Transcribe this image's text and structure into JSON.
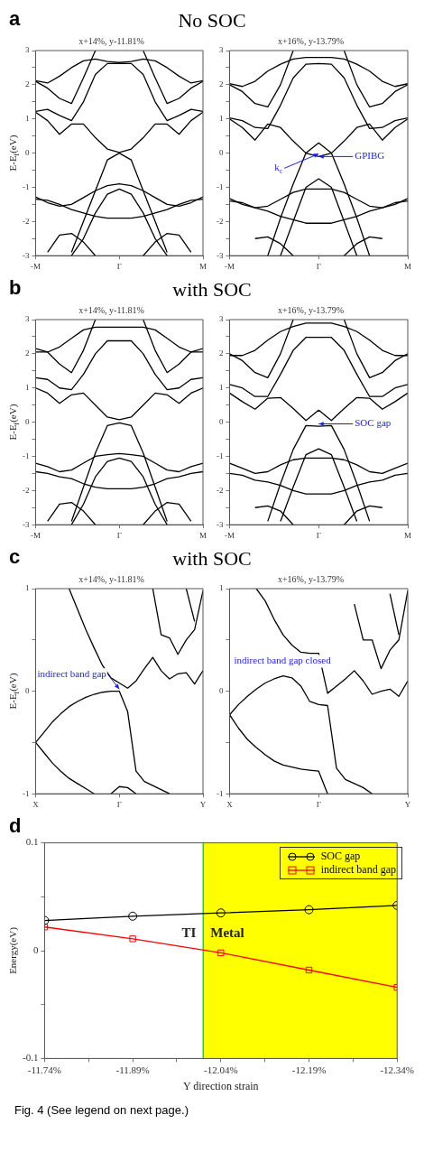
{
  "chart_data": [
    {
      "type": "line",
      "title": "x+14%, y-11.81%",
      "subtitle": "No SOC",
      "ylabel": "E-E$_{f}$(eV)",
      "annotations": [
        "a"
      ],
      "categories": [
        "-M",
        null,
        null,
        null,
        null,
        null,
        null,
        "Γ",
        null,
        null,
        null,
        null,
        null,
        null,
        "M"
      ],
      "ylim": [
        -3,
        3
      ],
      "yticks": [
        -3,
        {
          "value": -2.5,
          "label": null
        },
        -2,
        {
          "value": -1.5,
          "label": null
        },
        -1,
        {
          "value": -0.5,
          "label": null
        },
        0,
        {
          "value": 0.5,
          "label": null
        },
        1,
        {
          "value": 1.5,
          "label": null
        },
        2,
        {
          "value": 2.5,
          "label": null
        },
        3
      ],
      "grid": false,
      "legend": false,
      "marker": "none",
      "series": [
        {
          "color": "#000000",
          "values": [
            1.2,
            0.95,
            0.55,
            0.85,
            0.85,
            0.45,
            0.12,
            0.02,
            0.12,
            0.45,
            0.85,
            0.85,
            0.55,
            0.95,
            1.2
          ]
        },
        {
          "color": "#000000",
          "values": [
            1.22,
            1.28,
            1.1,
            0.95,
            1.5,
            2.3,
            2.62,
            2.62,
            2.62,
            2.3,
            1.5,
            0.95,
            1.1,
            1.28,
            1.22
          ]
        },
        {
          "color": "#000000",
          "values": [
            2.1,
            1.9,
            1.6,
            1.45,
            2.2,
            3.0,
            null,
            null,
            null,
            3.0,
            2.2,
            1.45,
            1.6,
            1.9,
            2.1
          ]
        },
        {
          "color": "#000000",
          "values": [
            2.12,
            2.05,
            2.25,
            2.5,
            2.7,
            2.75,
            2.68,
            2.65,
            2.68,
            2.75,
            2.7,
            2.5,
            2.25,
            2.05,
            2.12
          ]
        },
        {
          "color": "#000000",
          "values": [
            null,
            null,
            null,
            -2.9,
            -2.0,
            -1.1,
            -0.2,
            0,
            -0.2,
            -1.1,
            -2.0,
            -2.9,
            null,
            null,
            null
          ]
        },
        {
          "color": "#000000",
          "values": [
            null,
            null,
            null,
            -3.0,
            -2.5,
            -1.75,
            -1.2,
            -1.05,
            -1.2,
            -1.75,
            -2.5,
            -3.0,
            null,
            null,
            null
          ]
        },
        {
          "color": "#000000",
          "values": [
            -1.28,
            -1.45,
            -1.55,
            -1.5,
            -1.3,
            -1.1,
            -0.95,
            -0.9,
            -0.95,
            -1.1,
            -1.3,
            -1.5,
            -1.55,
            -1.45,
            -1.28
          ]
        },
        {
          "color": "#000000",
          "values": [
            -1.35,
            -1.38,
            -1.5,
            -1.65,
            -1.75,
            -1.85,
            -1.9,
            -1.9,
            -1.9,
            -1.85,
            -1.75,
            -1.65,
            -1.5,
            -1.38,
            -1.35
          ]
        },
        {
          "color": "#000000",
          "values": [
            null,
            -2.9,
            -2.4,
            -2.35,
            -2.6,
            -3.0,
            null,
            null,
            null,
            -3.0,
            -2.6,
            -2.35,
            -2.4,
            -2.9,
            null
          ]
        }
      ]
    },
    {
      "type": "line",
      "title": "x+16%, y-13.79%",
      "annotations": [
        {
          "text": "GPIBG",
          "x": "Γ",
          "y": -0.1
        },
        {
          "text": "k$_{c}$",
          "x": "Γ",
          "y": -0.02
        }
      ],
      "categories": [
        "-M",
        null,
        null,
        null,
        null,
        null,
        null,
        "Γ",
        null,
        null,
        null,
        null,
        null,
        null,
        "M"
      ],
      "ylim": [
        -3,
        3
      ],
      "yticks": [
        -3,
        {
          "value": -2.5,
          "label": null
        },
        -2,
        {
          "value": -1.5,
          "label": null
        },
        -1,
        {
          "value": -0.5,
          "label": null
        },
        0,
        {
          "value": 0.5,
          "label": null
        },
        1,
        {
          "value": 1.5,
          "label": null
        },
        2,
        {
          "value": 2.5,
          "label": null
        },
        3
      ],
      "grid": false,
      "legend": false,
      "marker": "none",
      "series": [
        {
          "color": "#000000",
          "values": [
            1.0,
            0.75,
            0.38,
            0.85,
            0.75,
            0.35,
            0.0,
            -0.1,
            0.0,
            0.35,
            0.75,
            0.85,
            0.38,
            0.75,
            1.0
          ]
        },
        {
          "color": "#000000",
          "values": [
            1.03,
            0.95,
            0.75,
            0.72,
            1.4,
            2.2,
            2.6,
            2.62,
            2.6,
            2.2,
            1.4,
            0.72,
            0.75,
            0.95,
            1.03
          ]
        },
        {
          "color": "#000000",
          "values": [
            2.0,
            1.8,
            1.45,
            1.35,
            2.0,
            3.0,
            null,
            null,
            null,
            3.0,
            2.0,
            1.35,
            1.45,
            1.8,
            2.0
          ]
        },
        {
          "color": "#000000",
          "values": [
            2.03,
            1.95,
            2.1,
            2.4,
            2.6,
            2.75,
            2.8,
            2.8,
            2.8,
            2.75,
            2.6,
            2.4,
            2.1,
            1.95,
            2.03
          ]
        },
        {
          "color": "#000000",
          "values": [
            null,
            null,
            null,
            -3.0,
            -1.9,
            -0.9,
            0.0,
            0.3,
            0.0,
            -0.9,
            -1.9,
            -3.0,
            null,
            null,
            null
          ]
        },
        {
          "color": "#000000",
          "values": [
            null,
            null,
            null,
            null,
            -3.0,
            -2.0,
            -1.0,
            -0.75,
            -1.0,
            -2.0,
            -3.0,
            null,
            null,
            null,
            null
          ]
        },
        {
          "color": "#000000",
          "values": [
            -1.33,
            -1.5,
            -1.6,
            -1.55,
            -1.35,
            -1.15,
            -1.05,
            -1.05,
            -1.05,
            -1.15,
            -1.35,
            -1.55,
            -1.6,
            -1.5,
            -1.33
          ]
        },
        {
          "color": "#000000",
          "values": [
            -1.4,
            -1.45,
            -1.6,
            -1.7,
            -1.85,
            -1.95,
            -2.05,
            -2.05,
            -2.05,
            -1.95,
            -1.85,
            -1.7,
            -1.6,
            -1.45,
            -1.4
          ]
        },
        {
          "color": "#000000",
          "values": [
            null,
            null,
            -2.5,
            -2.45,
            -2.65,
            -3.0,
            null,
            null,
            null,
            -3.0,
            -2.65,
            -2.45,
            -2.5,
            null,
            null
          ]
        }
      ]
    },
    {
      "type": "line",
      "title": "x+14%, y-11.81%",
      "subtitle": "with SOC",
      "ylabel": "E-E$_{f}$(eV)",
      "annotations": [
        "b"
      ],
      "categories": [
        "-M",
        null,
        null,
        null,
        null,
        null,
        null,
        "Γ",
        null,
        null,
        null,
        null,
        null,
        null,
        "M"
      ],
      "ylim": [
        -3,
        3
      ],
      "yticks": [
        -3,
        {
          "value": -2.5,
          "label": null
        },
        -2,
        {
          "value": -1.5,
          "label": null
        },
        -1,
        {
          "value": -0.5,
          "label": null
        },
        0,
        {
          "value": 0.5,
          "label": null
        },
        1,
        {
          "value": 1.5,
          "label": null
        },
        2,
        {
          "value": 2.5,
          "label": null
        },
        3
      ],
      "grid": false,
      "legend": false,
      "marker": "none",
      "series": [
        {
          "color": "#000000",
          "values": [
            1.0,
            0.85,
            0.55,
            0.8,
            0.85,
            0.5,
            0.15,
            0.07,
            0.15,
            0.5,
            0.85,
            0.8,
            0.55,
            0.85,
            1.0
          ]
        },
        {
          "color": "#000000",
          "values": [
            1.3,
            1.25,
            1.0,
            0.95,
            1.4,
            2.0,
            2.38,
            2.38,
            2.38,
            2.0,
            1.4,
            0.95,
            1.0,
            1.25,
            1.3
          ]
        },
        {
          "color": "#000000",
          "values": [
            2.15,
            2.05,
            1.7,
            1.45,
            2.1,
            3.0,
            null,
            null,
            null,
            3.0,
            2.1,
            1.45,
            1.7,
            2.05,
            2.15
          ]
        },
        {
          "color": "#000000",
          "values": [
            2.05,
            2.05,
            2.2,
            2.45,
            2.7,
            2.78,
            2.78,
            2.78,
            2.78,
            2.78,
            2.7,
            2.45,
            2.2,
            2.05,
            2.05
          ]
        },
        {
          "color": "#000000",
          "values": [
            null,
            null,
            null,
            -2.9,
            -1.9,
            -0.9,
            -0.1,
            -0.02,
            -0.1,
            -0.9,
            -1.9,
            -2.9,
            null,
            null,
            null
          ]
        },
        {
          "color": "#000000",
          "values": [
            null,
            null,
            null,
            -3.0,
            -2.4,
            -1.6,
            -1.15,
            -1.05,
            -1.15,
            -1.6,
            -2.4,
            -3.0,
            null,
            null,
            null
          ]
        },
        {
          "color": "#000000",
          "values": [
            -1.2,
            -1.3,
            -1.45,
            -1.4,
            -1.2,
            -1.0,
            -0.95,
            -0.92,
            -0.95,
            -1.0,
            -1.2,
            -1.4,
            -1.45,
            -1.3,
            -1.2
          ]
        },
        {
          "color": "#000000",
          "values": [
            -1.45,
            -1.5,
            -1.6,
            -1.65,
            -1.8,
            -1.9,
            -1.95,
            -1.95,
            -1.95,
            -1.9,
            -1.8,
            -1.65,
            -1.6,
            -1.5,
            -1.45
          ]
        },
        {
          "color": "#000000",
          "values": [
            null,
            -2.9,
            -2.4,
            -2.35,
            -2.6,
            -3.0,
            null,
            null,
            null,
            -3.0,
            -2.6,
            -2.35,
            -2.4,
            -2.9,
            null
          ]
        }
      ]
    },
    {
      "type": "line",
      "title": "x+16%, y-13.79%",
      "annotations": [
        {
          "text": "SOC gap",
          "x": "Γ",
          "y": -0.05
        }
      ],
      "categories": [
        "-M",
        null,
        null,
        null,
        null,
        null,
        null,
        "Γ",
        null,
        null,
        null,
        null,
        null,
        null,
        "M"
      ],
      "ylim": [
        -3,
        3
      ],
      "yticks": [
        -3,
        {
          "value": -2.5,
          "label": null
        },
        -2,
        {
          "value": -1.5,
          "label": null
        },
        -1,
        {
          "value": -0.5,
          "label": null
        },
        0,
        {
          "value": 0.5,
          "label": null
        },
        1,
        {
          "value": 1.5,
          "label": null
        },
        2,
        {
          "value": 2.5,
          "label": null
        },
        3
      ],
      "grid": false,
      "legend": false,
      "marker": "none",
      "series": [
        {
          "color": "#000000",
          "values": [
            0.85,
            0.6,
            0.38,
            0.7,
            0.72,
            0.4,
            0.05,
            0.35,
            0.05,
            0.4,
            0.72,
            0.7,
            0.38,
            0.6,
            0.85
          ]
        },
        {
          "color": "#000000",
          "values": [
            1.1,
            1.0,
            0.75,
            0.75,
            1.4,
            2.1,
            2.48,
            2.48,
            2.48,
            2.1,
            1.4,
            0.75,
            0.75,
            1.0,
            1.1
          ]
        },
        {
          "color": "#000000",
          "values": [
            2.0,
            1.8,
            1.45,
            1.3,
            2.0,
            3.0,
            null,
            null,
            null,
            3.0,
            2.0,
            1.3,
            1.45,
            1.8,
            2.0
          ]
        },
        {
          "color": "#000000",
          "values": [
            1.95,
            1.95,
            2.1,
            2.4,
            2.65,
            2.8,
            2.9,
            2.9,
            2.9,
            2.8,
            2.65,
            2.4,
            2.1,
            1.95,
            1.95
          ]
        },
        {
          "color": "#000000",
          "values": [
            null,
            null,
            null,
            -2.9,
            -1.8,
            -0.8,
            -0.1,
            -0.12,
            -0.1,
            -0.8,
            -1.8,
            -2.9,
            null,
            null,
            null
          ]
        },
        {
          "color": "#000000",
          "values": [
            null,
            null,
            null,
            null,
            -2.9,
            -1.9,
            -0.95,
            -0.78,
            -0.95,
            -1.9,
            -2.9,
            null,
            null,
            null,
            null
          ]
        },
        {
          "color": "#000000",
          "values": [
            -1.2,
            -1.35,
            -1.5,
            -1.45,
            -1.25,
            -1.1,
            -1.05,
            -1.05,
            -1.05,
            -1.1,
            -1.25,
            -1.45,
            -1.5,
            -1.35,
            -1.2
          ]
        },
        {
          "color": "#000000",
          "values": [
            -1.5,
            -1.55,
            -1.7,
            -1.75,
            -1.85,
            -2.0,
            -2.1,
            -2.1,
            -2.1,
            -2.0,
            -1.85,
            -1.75,
            -1.7,
            -1.55,
            -1.5
          ]
        },
        {
          "color": "#000000",
          "values": [
            null,
            null,
            -2.5,
            -2.45,
            -2.6,
            -3.0,
            null,
            null,
            null,
            -3.0,
            -2.6,
            -2.45,
            -2.5,
            null,
            null
          ]
        }
      ]
    },
    {
      "type": "line",
      "title": "x+14%, y-11.81%",
      "subtitle": "with SOC",
      "ylabel": "E-E$_{f}$(eV)",
      "annotations": [
        "c",
        {
          "text": "indirect band gap",
          "x": "Γ",
          "y": 0.02
        }
      ],
      "categories": [
        "X",
        null,
        null,
        null,
        null,
        null,
        null,
        null,
        null,
        null,
        "Γ",
        null,
        null,
        null,
        null,
        null,
        null,
        null,
        null,
        null,
        "Y"
      ],
      "ylim": [
        -1,
        1
      ],
      "yticks": [
        -1,
        {
          "value": -0.5,
          "label": null
        },
        0,
        {
          "value": 0.5,
          "label": null
        },
        1
      ],
      "grid": false,
      "legend": false,
      "marker": "none",
      "series": [
        {
          "color": "#000000",
          "values": [
            -0.5,
            -0.4,
            -0.3,
            -0.22,
            -0.15,
            -0.1,
            -0.06,
            -0.03,
            -0.01,
            0,
            0,
            -0.2,
            -0.78,
            -0.88,
            -0.92,
            -0.96,
            -1.0,
            null,
            null,
            null,
            null
          ]
        },
        {
          "color": "#000000",
          "values": [
            -0.5,
            -0.6,
            -0.7,
            -0.78,
            -0.85,
            -0.9,
            -0.95,
            -1.0,
            null,
            null,
            null,
            null,
            null,
            null,
            null,
            null,
            null,
            null,
            null,
            null,
            null
          ]
        },
        {
          "color": "#000000",
          "values": [
            null,
            null,
            null,
            null,
            1.0,
            0.8,
            0.6,
            0.42,
            0.25,
            0.13,
            0.08,
            0.03,
            0.1,
            0.22,
            0.33,
            0.2,
            0.12,
            0.17,
            0.18,
            0.07,
            0.2
          ]
        },
        {
          "color": "#000000",
          "values": [
            null,
            null,
            null,
            null,
            null,
            null,
            null,
            null,
            null,
            null,
            null,
            null,
            null,
            null,
            1.0,
            0.55,
            0.52,
            0.36,
            0.5,
            0.6,
            0.98
          ]
        },
        {
          "color": "#000000",
          "values": [
            null,
            null,
            null,
            null,
            null,
            null,
            null,
            null,
            null,
            null,
            null,
            null,
            null,
            null,
            null,
            null,
            null,
            null,
            1.0,
            0.68,
            null
          ]
        },
        {
          "color": "#000000",
          "values": [
            null,
            null,
            null,
            null,
            null,
            null,
            null,
            null,
            null,
            -1.0,
            -0.93,
            -0.94,
            -1.0,
            null,
            null,
            null,
            null,
            null,
            null,
            null,
            null
          ]
        }
      ]
    },
    {
      "type": "line",
      "title": "x+16%, y-13.79%",
      "annotations": [
        {
          "text": "indirect band gap closed",
          "y": 0.16
        }
      ],
      "categories": [
        "X",
        null,
        null,
        null,
        null,
        null,
        null,
        null,
        null,
        null,
        "Γ",
        null,
        null,
        null,
        null,
        null,
        null,
        null,
        null,
        null,
        "Y"
      ],
      "ylim": [
        -1,
        1
      ],
      "yticks": [
        -1,
        {
          "value": -0.5,
          "label": null
        },
        0,
        {
          "value": 0.5,
          "label": null
        },
        1
      ],
      "grid": false,
      "legend": false,
      "marker": "none",
      "series": [
        {
          "color": "#000000",
          "values": [
            -0.23,
            -0.13,
            -0.05,
            0.02,
            0.08,
            0.12,
            0.15,
            0.13,
            0.05,
            -0.1,
            -0.13,
            -0.14,
            -0.75,
            -0.86,
            -0.9,
            -0.94,
            -1.0,
            null,
            null,
            null,
            null
          ]
        },
        {
          "color": "#000000",
          "values": [
            -0.23,
            -0.36,
            -0.47,
            -0.55,
            -0.62,
            -0.68,
            -0.72,
            -0.74,
            -0.76,
            -0.77,
            -0.78,
            -1.0,
            null,
            null,
            null,
            null,
            null,
            null,
            null,
            null,
            null
          ]
        },
        {
          "color": "#000000",
          "values": [
            null,
            null,
            null,
            1.0,
            0.88,
            0.7,
            0.55,
            0.45,
            0.38,
            0.37,
            0.37,
            -0.02,
            0.05,
            0.12,
            0.2,
            0.1,
            -0.03,
            0.0,
            0.02,
            -0.05,
            0.1
          ]
        },
        {
          "color": "#000000",
          "values": [
            null,
            null,
            null,
            null,
            null,
            null,
            null,
            null,
            null,
            null,
            null,
            null,
            null,
            null,
            0.85,
            0.5,
            0.5,
            0.22,
            0.4,
            0.5,
            0.98
          ]
        },
        {
          "color": "#000000",
          "values": [
            null,
            null,
            null,
            null,
            null,
            null,
            null,
            null,
            null,
            null,
            null,
            null,
            null,
            null,
            null,
            null,
            null,
            null,
            0.95,
            0.55,
            null
          ]
        }
      ]
    },
    {
      "type": "line",
      "xlabel": "Y direction strain",
      "ylabel": "Energy(eV)",
      "annotations": [
        "d",
        "Fig. 4 (See legend on next page.)"
      ],
      "x": [
        -11.74,
        -11.89,
        -12.04,
        -12.19,
        -12.34
      ],
      "xlim": [
        -11.74,
        -12.34
      ],
      "xticks": [
        {
          "value": -11.74,
          "label": "-11.74%"
        },
        {
          "value": -11.815,
          "label": null
        },
        {
          "value": -11.89,
          "label": "-11.89%"
        },
        {
          "value": -11.965,
          "label": null
        },
        {
          "value": -12.04,
          "label": "-12.04%"
        },
        {
          "value": -12.115,
          "label": null
        },
        {
          "value": -12.19,
          "label": "-12.19%"
        },
        {
          "value": -12.265,
          "label": null
        },
        {
          "value": -12.34,
          "label": "-12.34%"
        }
      ],
      "ylim": [
        -0.1,
        0.1
      ],
      "yticks": [
        -0.1,
        {
          "value": -0.05,
          "label": null
        },
        0,
        {
          "value": 0.05,
          "label": null
        },
        0.1
      ],
      "grid": false,
      "legend": "top right",
      "series": [
        {
          "name": "SOC gap",
          "color": "#000000",
          "marker": "circle",
          "values": [
            0.028,
            0.032,
            0.035,
            0.038,
            0.042
          ]
        },
        {
          "name": "indirect band gap",
          "color": "#ff0000",
          "marker": "square",
          "values": [
            0.022,
            0.011,
            -0.002,
            -0.018,
            -0.034
          ]
        }
      ],
      "bands": [
        {
          "axis": "x",
          "from": -11.74,
          "to": -12.01,
          "label": "TI",
          "color": "#ffffff"
        },
        {
          "axis": "x",
          "from": -12.01,
          "to": -12.34,
          "label": "Metal",
          "color": "#ffff00"
        }
      ],
      "ref_lines": [
        {
          "axis": "x",
          "value": -12.01,
          "color": "#33cc33"
        }
      ]
    }
  ]
}
